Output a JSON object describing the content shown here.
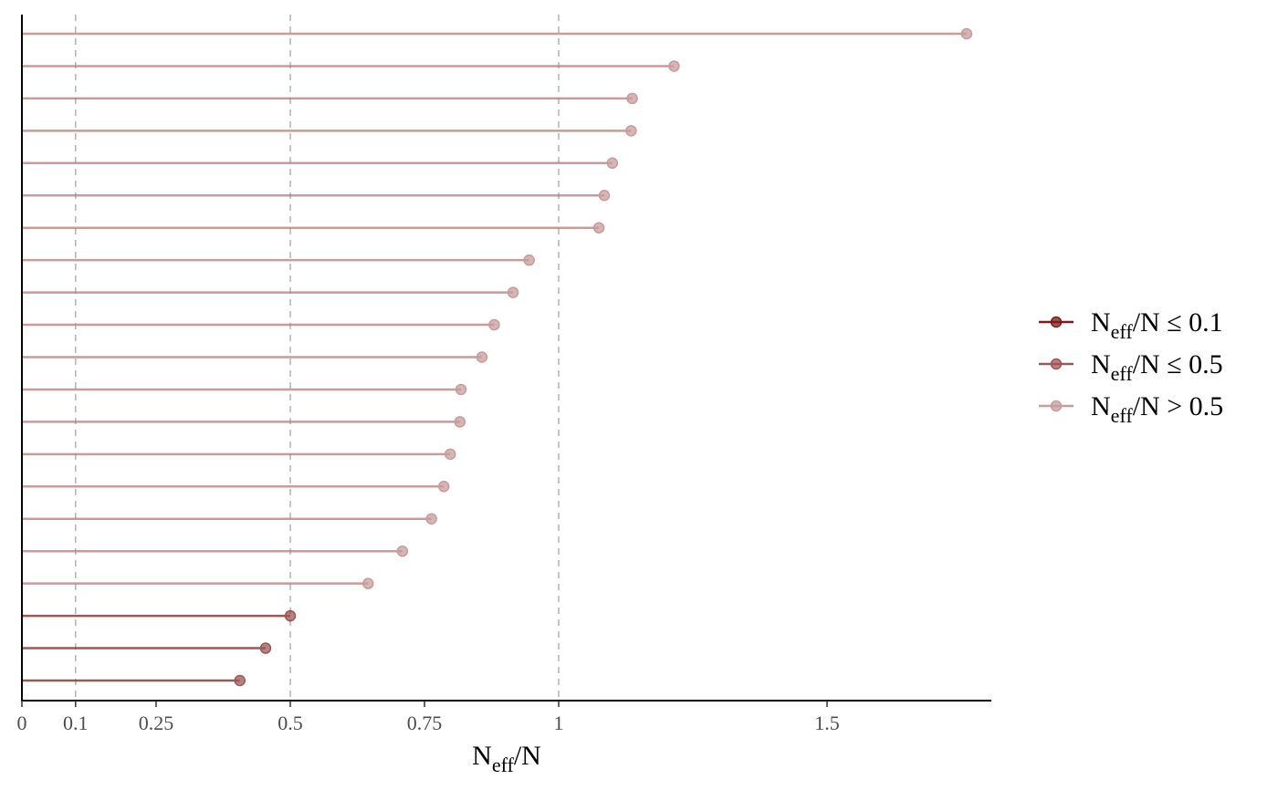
{
  "chart_data": {
    "type": "lollipop",
    "x_axis": {
      "title_main": "N",
      "title_sub": "eff",
      "title_tail": "/N",
      "range": [
        0,
        1.8
      ],
      "ticks": [
        {
          "value": 0,
          "label": "0"
        },
        {
          "value": 0.1,
          "label": "0.1"
        },
        {
          "value": 0.25,
          "label": "0.25"
        },
        {
          "value": 0.5,
          "label": "0.5"
        },
        {
          "value": 0.75,
          "label": "0.75"
        },
        {
          "value": 1,
          "label": "1"
        },
        {
          "value": 1.5,
          "label": "1.5"
        }
      ],
      "reference_lines": [
        0.1,
        0.5,
        1
      ]
    },
    "values": [
      1.76,
      1.215,
      1.137,
      1.135,
      1.1,
      1.085,
      1.075,
      0.945,
      0.915,
      0.88,
      0.857,
      0.818,
      0.816,
      0.798,
      0.786,
      0.763,
      0.709,
      0.645,
      0.5,
      0.454,
      0.406
    ],
    "categories": {
      "low": {
        "color": "#7b1c1c",
        "opacity": 1.0,
        "threshold_label": "0.1",
        "operator": "≤"
      },
      "mid": {
        "color": "#8b3a3a",
        "opacity": 0.85,
        "threshold_label": "0.5",
        "operator": "≤"
      },
      "high": {
        "color": "#b37b7b",
        "opacity": 0.75,
        "threshold_label": "0.5",
        "operator": ">"
      }
    },
    "legend": {
      "placement": "right",
      "items": [
        {
          "key": "low",
          "main": "N",
          "sub": "eff",
          "tail": "/N ≤ 0.1"
        },
        {
          "key": "mid",
          "main": "N",
          "sub": "eff",
          "tail": "/N ≤ 0.5"
        },
        {
          "key": "high",
          "main": "N",
          "sub": "eff",
          "tail": "/N > 0.5"
        }
      ]
    },
    "grid": false
  }
}
